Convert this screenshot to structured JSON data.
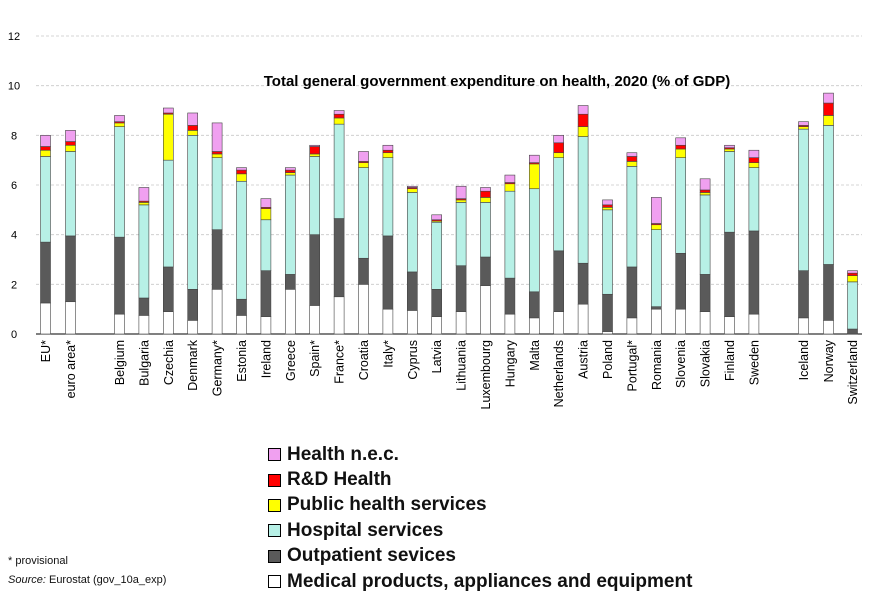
{
  "chart_data": {
    "type": "bar",
    "stacked": true,
    "title": "Total general government expenditure on health, 2020 (% of GDP)",
    "ylim": [
      0,
      12
    ],
    "yticks": [
      0,
      2,
      4,
      6,
      8,
      10,
      12
    ],
    "grid": true,
    "legend_position": "bottom",
    "categories": [
      "EU*",
      "euro area*",
      "Belgium",
      "Bulgaria",
      "Czechia",
      "Denmark",
      "Germany*",
      "Estonia",
      "Ireland",
      "Greece",
      "Spain*",
      "France*",
      "Croatia",
      "Italy*",
      "Cyprus",
      "Latvia",
      "Lithuania",
      "Luxembourg",
      "Hungary",
      "Malta",
      "Netherlands",
      "Austria",
      "Poland",
      "Portugal*",
      "Romania",
      "Slovenia",
      "Slovakia",
      "Finland",
      "Sweden",
      "Iceland",
      "Norway",
      "Switzerland"
    ],
    "series": [
      {
        "name": "Medical products, appliances and equipment",
        "color": "#ffffff",
        "values": [
          1.25,
          1.3,
          0.8,
          0.75,
          0.9,
          0.55,
          1.8,
          0.75,
          0.7,
          1.8,
          1.15,
          1.5,
          2.0,
          1.0,
          0.95,
          0.7,
          0.9,
          1.95,
          0.8,
          0.65,
          0.9,
          1.2,
          0.1,
          0.65,
          1.0,
          1.0,
          0.9,
          0.7,
          0.8,
          0.65,
          0.55,
          0.0
        ]
      },
      {
        "name": "Outpatient sevices",
        "color": "#5a5a5a",
        "values": [
          2.45,
          2.65,
          3.1,
          0.7,
          1.8,
          1.25,
          2.4,
          0.65,
          1.85,
          0.6,
          2.85,
          3.15,
          1.05,
          2.95,
          1.55,
          1.1,
          1.85,
          1.15,
          1.45,
          1.05,
          2.45,
          1.65,
          1.5,
          2.05,
          0.1,
          2.25,
          1.5,
          3.4,
          3.35,
          1.9,
          2.25,
          0.2
        ]
      },
      {
        "name": "Hospital services",
        "color": "#b7f0e6",
        "values": [
          3.45,
          3.4,
          4.45,
          3.75,
          4.3,
          6.2,
          2.9,
          4.75,
          2.05,
          4.0,
          3.15,
          3.8,
          3.65,
          3.15,
          3.2,
          2.7,
          2.55,
          2.2,
          3.5,
          4.15,
          3.75,
          5.1,
          3.4,
          4.05,
          3.1,
          3.85,
          3.2,
          3.25,
          2.55,
          5.7,
          5.6,
          1.9
        ]
      },
      {
        "name": "Public health services",
        "color": "#ffff00",
        "values": [
          0.25,
          0.25,
          0.15,
          0.1,
          1.85,
          0.2,
          0.15,
          0.3,
          0.45,
          0.1,
          0.1,
          0.25,
          0.2,
          0.2,
          0.15,
          0.05,
          0.1,
          0.2,
          0.3,
          1.0,
          0.2,
          0.4,
          0.1,
          0.2,
          0.2,
          0.35,
          0.1,
          0.1,
          0.2,
          0.1,
          0.4,
          0.25
        ]
      },
      {
        "name": "R&D Health",
        "color": "#ff0000",
        "values": [
          0.15,
          0.15,
          0.05,
          0.05,
          0.05,
          0.2,
          0.1,
          0.15,
          0.05,
          0.1,
          0.3,
          0.15,
          0.05,
          0.1,
          0.05,
          0.05,
          0.05,
          0.25,
          0.05,
          0.05,
          0.4,
          0.5,
          0.1,
          0.2,
          0.05,
          0.15,
          0.1,
          0.05,
          0.2,
          0.05,
          0.5,
          0.1
        ]
      },
      {
        "name": "Health n.e.c.",
        "color": "#f0a0f0",
        "values": [
          0.45,
          0.45,
          0.25,
          0.55,
          0.2,
          0.5,
          1.15,
          0.1,
          0.35,
          0.1,
          0.05,
          0.15,
          0.4,
          0.2,
          0.05,
          0.2,
          0.5,
          0.15,
          0.3,
          0.3,
          0.3,
          0.35,
          0.2,
          0.15,
          1.05,
          0.3,
          0.45,
          0.1,
          0.3,
          0.15,
          0.4,
          0.1
        ]
      }
    ],
    "footnote": "* provisional",
    "source_label": "Source:",
    "source_text": " Eurostat (gov_10a_exp)"
  }
}
